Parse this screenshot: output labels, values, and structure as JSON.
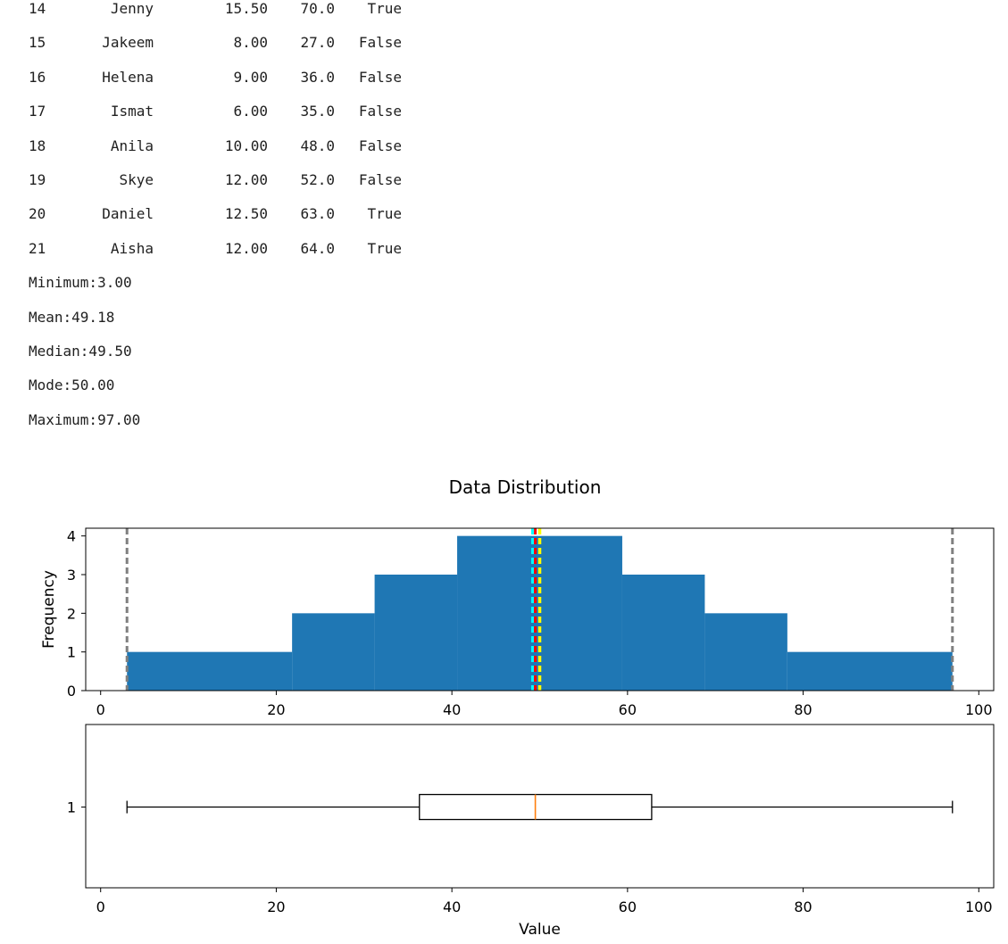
{
  "table": {
    "rows": [
      {
        "idx": "14",
        "name": "Jenny",
        "hours": "15.50",
        "grade": "70.0",
        "pass": "True"
      },
      {
        "idx": "15",
        "name": "Jakeem",
        "hours": "8.00",
        "grade": "27.0",
        "pass": "False"
      },
      {
        "idx": "16",
        "name": "Helena",
        "hours": "9.00",
        "grade": "36.0",
        "pass": "False"
      },
      {
        "idx": "17",
        "name": "Ismat",
        "hours": "6.00",
        "grade": "35.0",
        "pass": "False"
      },
      {
        "idx": "18",
        "name": "Anila",
        "hours": "10.00",
        "grade": "48.0",
        "pass": "False"
      },
      {
        "idx": "19",
        "name": "Skye",
        "hours": "12.00",
        "grade": "52.0",
        "pass": "False"
      },
      {
        "idx": "20",
        "name": "Daniel",
        "hours": "12.50",
        "grade": "63.0",
        "pass": "True"
      },
      {
        "idx": "21",
        "name": "Aisha",
        "hours": "12.00",
        "grade": "64.0",
        "pass": "True"
      }
    ]
  },
  "stats": {
    "minimum": "Minimum:3.00",
    "mean": "Mean:49.18",
    "median": "Median:49.50",
    "mode": "Mode:50.00",
    "maximum": "Maximum:97.00"
  },
  "chart_data": [
    {
      "type": "bar",
      "title": "Data Distribution",
      "xlabel": "",
      "ylabel": "Frequency",
      "xlim": [
        -1.7,
        101.7
      ],
      "ylim": [
        0,
        4.2
      ],
      "x_ticks": [
        "0",
        "20",
        "40",
        "60",
        "80",
        "100"
      ],
      "y_ticks": [
        "0",
        "1",
        "2",
        "3",
        "4"
      ],
      "bins": [
        {
          "start": 3.0,
          "end": 21.8,
          "count": 1
        },
        {
          "start": 21.8,
          "end": 31.2,
          "count": 2
        },
        {
          "start": 31.2,
          "end": 40.6,
          "count": 3
        },
        {
          "start": 40.6,
          "end": 59.4,
          "count": 4
        },
        {
          "start": 59.4,
          "end": 68.8,
          "count": 3
        },
        {
          "start": 68.8,
          "end": 78.2,
          "count": 2
        },
        {
          "start": 78.2,
          "end": 97.0,
          "count": 1
        }
      ],
      "bar_color": "#1f77b4",
      "reference_lines": [
        {
          "stat": "minimum",
          "x": 3.0,
          "color": "#808080"
        },
        {
          "stat": "mean",
          "x": 49.18,
          "color": "#00ffff"
        },
        {
          "stat": "median",
          "x": 49.5,
          "color": "#ff0000"
        },
        {
          "stat": "mode",
          "x": 50.0,
          "color": "#ffff00"
        },
        {
          "stat": "maximum",
          "x": 97.0,
          "color": "#808080"
        }
      ]
    },
    {
      "type": "box",
      "xlabel": "Value",
      "xlim": [
        -1.7,
        101.7
      ],
      "x_ticks": [
        "0",
        "20",
        "40",
        "60",
        "80",
        "100"
      ],
      "y_ticks": [
        "1"
      ],
      "box": {
        "whisker_low": 3.0,
        "q1": 36.3,
        "median": 49.5,
        "q3": 62.75,
        "whisker_high": 97.0
      },
      "median_color": "#ff7f0e"
    }
  ]
}
